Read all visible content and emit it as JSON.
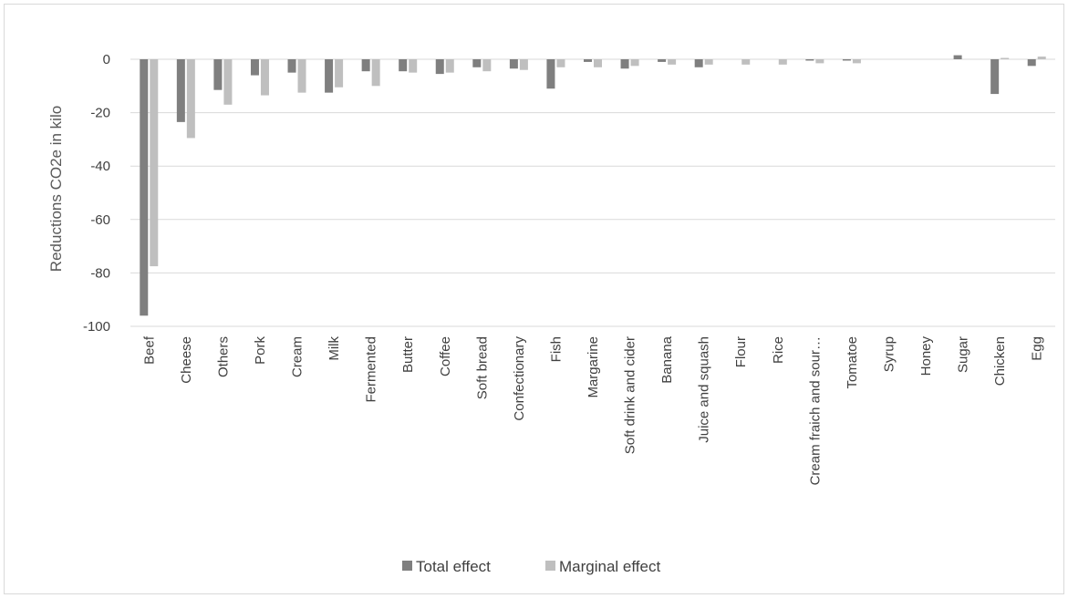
{
  "chart_data": {
    "type": "bar",
    "title": "",
    "xlabel": "",
    "ylabel": "Reductions CO2e in kilo",
    "ylim": [
      -100,
      0
    ],
    "yticks": [
      0,
      -20,
      -40,
      -60,
      -80,
      -100
    ],
    "grid": true,
    "legend_position": "bottom",
    "categories": [
      "Beef",
      "Cheese",
      "Others",
      "Pork",
      "Cream",
      "Milk",
      "Fermented",
      "Butter",
      "Coffee",
      "Soft bread",
      "Confectionary",
      "Fish",
      "Margarine",
      "Soft drink and cider",
      "Banana",
      "Juice and squash",
      "Flour",
      "Rice",
      "Cream fraich and sour…",
      "Tomatoe",
      "Syrup",
      "Honey",
      "Sugar",
      "Chicken",
      "Egg"
    ],
    "series": [
      {
        "name": "Total effect",
        "color": "#7f7f7f",
        "values": [
          -96,
          -23.5,
          -11.5,
          -6,
          -5,
          -12.5,
          -4.5,
          -4.5,
          -5.5,
          -3,
          -3.5,
          -11,
          -1,
          -3.5,
          -1,
          -3,
          0,
          0,
          -0.5,
          -0.5,
          0,
          0,
          1.5,
          -13,
          -2.5
        ]
      },
      {
        "name": "Marginal effect",
        "color": "#bfbfbf",
        "values": [
          -77.5,
          -29.5,
          -17,
          -13.5,
          -12.5,
          -10.5,
          -10,
          -5,
          -5,
          -4.5,
          -4,
          -3,
          -3,
          -2.5,
          -2,
          -2,
          -2,
          -2,
          -1.5,
          -1.5,
          0,
          0,
          0,
          0.5,
          1
        ]
      }
    ]
  }
}
